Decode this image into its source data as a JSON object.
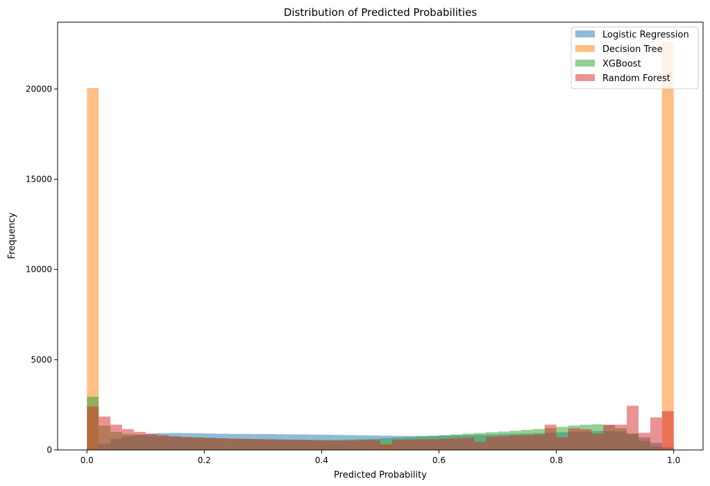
{
  "chart_data": {
    "type": "histogram",
    "title": "Distribution of Predicted Probabilities",
    "xlabel": "Predicted Probability",
    "ylabel": "Frequency",
    "xlim": [
      -0.05,
      1.05
    ],
    "ylim": [
      0,
      23700
    ],
    "xticks": [
      0.0,
      0.2,
      0.4,
      0.6,
      0.8,
      1.0
    ],
    "xtick_labels": [
      "0.0",
      "0.2",
      "0.4",
      "0.6",
      "0.8",
      "1.0"
    ],
    "yticks": [
      0,
      5000,
      10000,
      15000,
      20000
    ],
    "ytick_labels": [
      "0",
      "5000",
      "10000",
      "15000",
      "20000"
    ],
    "legend_position": "top-right",
    "bin_start": 0.0,
    "bin_width": 0.02,
    "series": [
      {
        "name": "Logistic Regression",
        "color": "#1f77b4",
        "alpha": 0.5,
        "values": [
          100,
          350,
          620,
          760,
          860,
          900,
          930,
          940,
          930,
          920,
          910,
          900,
          890,
          890,
          880,
          880,
          870,
          860,
          860,
          850,
          840,
          830,
          820,
          810,
          800,
          790,
          780,
          770,
          780,
          790,
          800,
          810,
          820,
          830,
          850,
          870,
          890,
          910,
          930,
          950,
          980,
          1000,
          1020,
          1050,
          1060,
          1020,
          900,
          700,
          400,
          150
        ]
      },
      {
        "name": "Decision Tree",
        "color": "#ff7f0e",
        "alpha": 0.5,
        "values": [
          20050,
          0,
          0,
          0,
          0,
          0,
          0,
          0,
          0,
          0,
          0,
          0,
          0,
          0,
          0,
          0,
          0,
          0,
          0,
          0,
          0,
          0,
          0,
          0,
          0,
          300,
          0,
          0,
          0,
          0,
          0,
          0,
          0,
          0,
          0,
          0,
          0,
          0,
          0,
          0,
          0,
          0,
          0,
          0,
          0,
          0,
          0,
          0,
          0,
          22600
        ]
      },
      {
        "name": "XGBoost",
        "color": "#2ca02c",
        "alpha": 0.5,
        "values": [
          2950,
          1350,
          1000,
          880,
          830,
          790,
          760,
          730,
          710,
          690,
          670,
          650,
          630,
          620,
          610,
          600,
          590,
          580,
          570,
          560,
          560,
          560,
          580,
          600,
          620,
          650,
          680,
          710,
          740,
          770,
          820,
          860,
          900,
          940,
          980,
          1020,
          1060,
          1110,
          1160,
          1220,
          1280,
          1350,
          1400,
          1420,
          1380,
          1200,
          900,
          500,
          200,
          80
        ]
      },
      {
        "name": "Random Forest",
        "color": "#d62728",
        "alpha": 0.5,
        "values": [
          2400,
          1850,
          1400,
          1150,
          1000,
          900,
          820,
          760,
          720,
          690,
          670,
          650,
          630,
          610,
          600,
          580,
          570,
          560,
          550,
          540,
          520,
          520,
          530,
          540,
          550,
          300,
          570,
          580,
          590,
          600,
          620,
          650,
          680,
          450,
          720,
          760,
          800,
          820,
          850,
          1400,
          700,
          1200,
          1150,
          900,
          1400,
          1400,
          2450,
          950,
          1800,
          2150
        ]
      }
    ]
  }
}
